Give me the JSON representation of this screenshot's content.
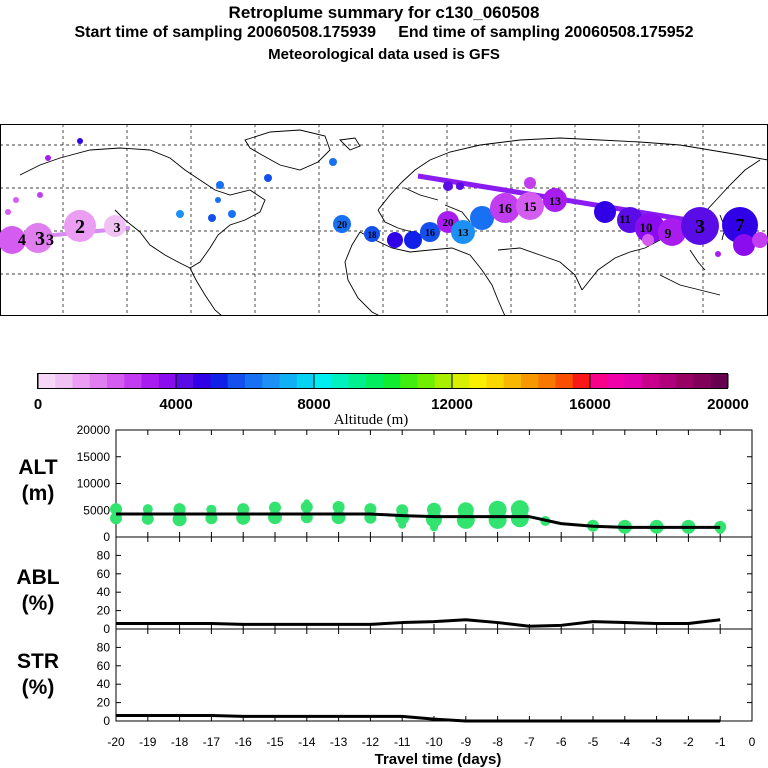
{
  "header": {
    "title": "Retroplume summary for c130_060508",
    "subtitle": "Start time of sampling 20060508.175939     End time of sampling 20060508.175952",
    "subtitle2": "Meteorological data used is GFS"
  },
  "colors": {
    "line": "#000000",
    "scatter": "#33e36f",
    "colorbar": [
      "#f6d8f6",
      "#f0c2f3",
      "#ea9df2",
      "#e07ef0",
      "#d55cf0",
      "#c23cf0",
      "#a81cf0",
      "#8c0cf0",
      "#5a0ce6",
      "#3000e6",
      "#1020e8",
      "#1450ee",
      "#1870f2",
      "#1c90f4",
      "#10b0f4",
      "#06d2f4",
      "#00eef0",
      "#00f0c0",
      "#00f090",
      "#00ee60",
      "#10ec30",
      "#40ee10",
      "#70f000",
      "#a8f000",
      "#d8f000",
      "#f8f000",
      "#f8d800",
      "#f8b800",
      "#f89800",
      "#f87800",
      "#f85000",
      "#f81818",
      "#f8008a",
      "#f000a8",
      "#e000b0",
      "#c8008c",
      "#b0007c",
      "#980064",
      "#80005a",
      "#680050"
    ]
  },
  "map": {
    "labels": [
      {
        "text": "3"
      },
      {
        "text": "4"
      },
      {
        "text": "3"
      },
      {
        "text": "2"
      },
      {
        "text": "3"
      },
      {
        "text": "20"
      },
      {
        "text": "18"
      },
      {
        "text": "16"
      },
      {
        "text": "20"
      },
      {
        "text": "13"
      },
      {
        "text": "16"
      },
      {
        "text": "15"
      },
      {
        "text": "13"
      },
      {
        "text": "11"
      },
      {
        "text": "10"
      },
      {
        "text": "9"
      },
      {
        "text": "3"
      },
      {
        "text": "7"
      }
    ]
  },
  "colorbar": {
    "tick_labels": [
      "0",
      "4000",
      "8000",
      "12000",
      "16000",
      "20000"
    ],
    "title": "Altitude (m)"
  },
  "chart_data": [
    {
      "type": "line",
      "panel": "ALT",
      "ylabel": "ALT\n(m)",
      "ylabel_line1": "ALT",
      "ylabel_line2": "(m)",
      "ylim": [
        0,
        20000
      ],
      "yticks": [
        0,
        5000,
        10000,
        15000,
        20000
      ],
      "ytick_labels": [
        "0",
        "5000",
        "10000",
        "15000",
        "20000"
      ],
      "x": [
        -20,
        -19,
        -18,
        -17,
        -16,
        -15,
        -14,
        -13,
        -12,
        -11,
        -10,
        -9,
        -8,
        -7,
        -6,
        -5,
        -4,
        -3,
        -2,
        -1
      ],
      "values": [
        4300,
        4300,
        4300,
        4300,
        4300,
        4300,
        4300,
        4300,
        4300,
        4000,
        3800,
        3800,
        3800,
        3800,
        2500,
        2000,
        1800,
        1800,
        1800,
        1800
      ],
      "scatter_x": [
        -20,
        -20,
        -19,
        -19,
        -18,
        -18,
        -17,
        -17,
        -16,
        -16,
        -15,
        -15,
        -14,
        -14,
        -14,
        -13,
        -13,
        -12,
        -12,
        -11,
        -11,
        -11,
        -10,
        -10,
        -10,
        -9,
        -9,
        -9,
        -8,
        -8,
        -7.3,
        -7.3,
        -6.5,
        -5,
        -4,
        -3,
        -2,
        -1,
        -1
      ],
      "scatter_y": [
        5200,
        3500,
        5200,
        3400,
        5200,
        3300,
        5100,
        3500,
        5200,
        3600,
        5500,
        3700,
        5600,
        3700,
        6500,
        5600,
        3700,
        5200,
        3600,
        5000,
        3600,
        2300,
        5100,
        3300,
        1800,
        5000,
        3200,
        2700,
        5100,
        3200,
        5200,
        3500,
        3000,
        2100,
        1900,
        1900,
        1900,
        1900,
        1300
      ],
      "scatter_r": [
        6,
        6,
        5,
        6,
        6,
        7,
        5,
        6,
        6,
        7,
        6,
        7,
        6,
        6,
        3,
        6,
        7,
        6,
        6,
        6,
        7,
        4,
        7,
        8,
        4,
        8,
        9,
        6,
        9,
        9,
        9,
        9,
        5,
        6,
        7,
        7,
        7,
        6,
        4
      ]
    },
    {
      "type": "line",
      "panel": "ABL",
      "ylabel": "ABL\n(%)",
      "ylabel_line1": "ABL",
      "ylabel_line2": "(%)",
      "ylim": [
        0,
        100
      ],
      "yticks": [
        0,
        20,
        40,
        60,
        80
      ],
      "ytick_labels": [
        "0",
        "20",
        "40",
        "60",
        "80"
      ],
      "x": [
        -20,
        -19,
        -18,
        -17,
        -16,
        -15,
        -14,
        -13,
        -12,
        -11,
        -10,
        -9,
        -8,
        -7,
        -6,
        -5,
        -4,
        -3,
        -2,
        -1
      ],
      "values": [
        6,
        6,
        6,
        6,
        5,
        5,
        5,
        5,
        5,
        7,
        8,
        10,
        7,
        3,
        4,
        8,
        7,
        6,
        6,
        10
      ]
    },
    {
      "type": "line",
      "panel": "STR",
      "ylabel": "STR\n(%)",
      "ylabel_line1": "STR",
      "ylabel_line2": "(%)",
      "ylim": [
        0,
        100
      ],
      "yticks": [
        0,
        20,
        40,
        60,
        80
      ],
      "ytick_labels": [
        "0",
        "20",
        "40",
        "60",
        "80"
      ],
      "x": [
        -20,
        -19,
        -18,
        -17,
        -16,
        -15,
        -14,
        -13,
        -12,
        -11,
        -10,
        -9,
        -8,
        -7,
        -6,
        -5,
        -4,
        -3,
        -2,
        -1
      ],
      "values": [
        6,
        6,
        6,
        6,
        5,
        5,
        5,
        5,
        5,
        5,
        2,
        0,
        0,
        0,
        0,
        0,
        0,
        0,
        0,
        0
      ],
      "xlabel": "Travel time (days)",
      "xlim": [
        -20,
        0
      ],
      "xtick_labels": [
        "-20",
        "-19",
        "-18",
        "-17",
        "-16",
        "-15",
        "-14",
        "-13",
        "-12",
        "-11",
        "-10",
        "-9",
        "-8",
        "-7",
        "-6",
        "-5",
        "-4",
        "-3",
        "-2",
        "-1",
        "0"
      ]
    }
  ]
}
